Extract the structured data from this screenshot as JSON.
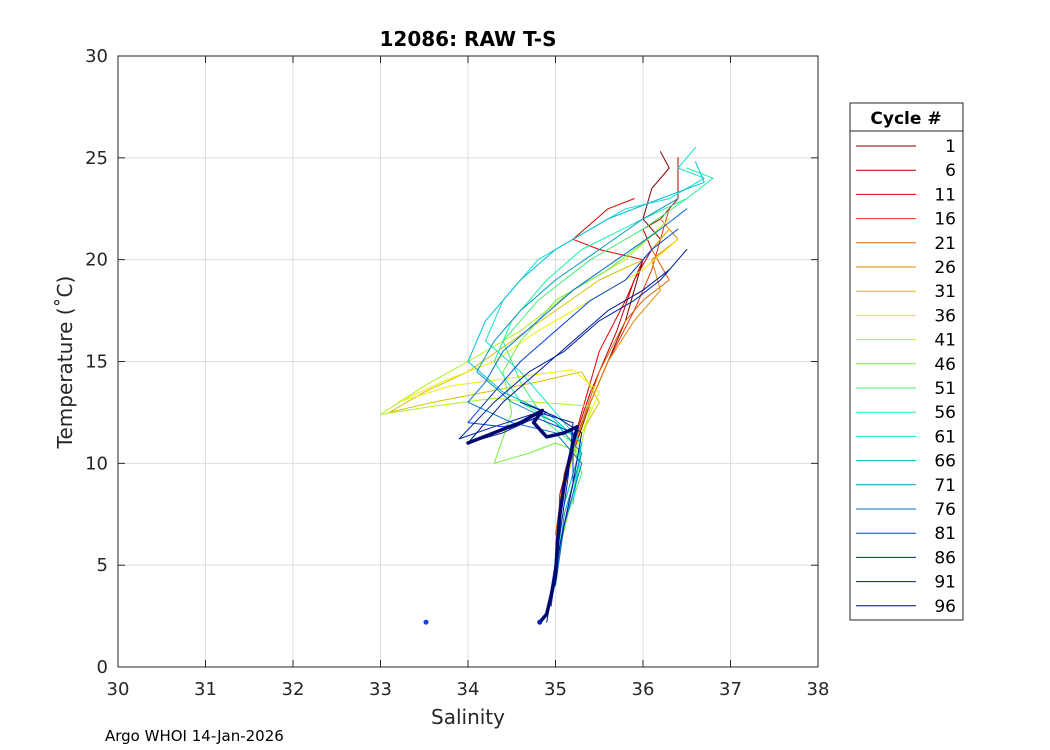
{
  "chart_data": {
    "type": "line",
    "title": "12086: RAW T-S",
    "xlabel": "Salinity",
    "ylabel": "Temperature (˚C)",
    "xlim": [
      30,
      38
    ],
    "ylim": [
      0,
      30
    ],
    "xticks": [
      "30",
      "31",
      "32",
      "33",
      "34",
      "35",
      "36",
      "37",
      "38"
    ],
    "yticks": [
      "0",
      "5",
      "10",
      "15",
      "20",
      "25",
      "30"
    ],
    "grid": true,
    "legend": {
      "title": "Cycle #",
      "placement": "outside-right",
      "entries": [
        {
          "label": "1",
          "color": "#800000"
        },
        {
          "label": "6",
          "color": "#b00000"
        },
        {
          "label": "11",
          "color": "#e00000"
        },
        {
          "label": "16",
          "color": "#e83010"
        },
        {
          "label": "21",
          "color": "#e06000"
        },
        {
          "label": "26",
          "color": "#e08800"
        },
        {
          "label": "31",
          "color": "#d8c000"
        },
        {
          "label": "36",
          "color": "#f0f000"
        },
        {
          "label": "41",
          "color": "#b0f020"
        },
        {
          "label": "46",
          "color": "#70f040"
        },
        {
          "label": "51",
          "color": "#40f070"
        },
        {
          "label": "56",
          "color": "#20f0a8"
        },
        {
          "label": "61",
          "color": "#10e0d0"
        },
        {
          "label": "66",
          "color": "#00c0d8"
        },
        {
          "label": "71",
          "color": "#0098c0"
        },
        {
          "label": "76",
          "color": "#0070d0"
        },
        {
          "label": "81",
          "color": "#0040e0"
        },
        {
          "label": "86",
          "color": "#0020b0"
        },
        {
          "label": "91",
          "color": "#001890"
        },
        {
          "label": "96",
          "color": "#000870"
        }
      ]
    },
    "series": [
      {
        "color": "#800000",
        "points": [
          [
            36.2,
            25.3
          ],
          [
            36.3,
            24.5
          ],
          [
            36.1,
            23.5
          ],
          [
            36.0,
            22.0
          ],
          [
            36.2,
            21.0
          ],
          [
            36.0,
            20.0
          ],
          [
            35.9,
            18.5
          ],
          [
            35.8,
            17.0
          ],
          [
            35.6,
            15.0
          ],
          [
            35.4,
            13.0
          ],
          [
            35.2,
            10.5
          ],
          [
            35.05,
            8.0
          ],
          [
            35.0,
            5.0
          ],
          [
            34.95,
            3.0
          ]
        ]
      },
      {
        "color": "#b00000",
        "points": [
          [
            36.4,
            25.0
          ],
          [
            36.4,
            23.0
          ],
          [
            36.2,
            22.0
          ],
          [
            36.0,
            21.5
          ],
          [
            36.1,
            20.5
          ],
          [
            35.9,
            19.0
          ],
          [
            35.7,
            16.5
          ],
          [
            35.4,
            13.5
          ],
          [
            35.2,
            11.0
          ],
          [
            35.05,
            8.5
          ],
          [
            35.0,
            4.5
          ]
        ]
      },
      {
        "color": "#e00000",
        "points": [
          [
            35.9,
            23.0
          ],
          [
            35.6,
            22.5
          ],
          [
            35.2,
            21.0
          ],
          [
            35.5,
            20.5
          ],
          [
            36.0,
            20.0
          ],
          [
            35.8,
            18.0
          ],
          [
            35.5,
            15.5
          ],
          [
            35.3,
            12.5
          ],
          [
            35.1,
            9.5
          ],
          [
            35.0,
            6.0
          ]
        ]
      },
      {
        "color": "#e83010",
        "points": [
          [
            36.3,
            22.5
          ],
          [
            36.2,
            21.0
          ],
          [
            36.1,
            19.5
          ],
          [
            35.9,
            17.5
          ],
          [
            35.6,
            15.0
          ],
          [
            35.3,
            12.0
          ],
          [
            35.1,
            9.0
          ],
          [
            35.0,
            5.5
          ]
        ]
      },
      {
        "color": "#e06000",
        "points": [
          [
            36.3,
            21.5
          ],
          [
            36.1,
            20.5
          ],
          [
            36.3,
            19.0
          ],
          [
            36.0,
            18.0
          ],
          [
            35.8,
            17.0
          ],
          [
            35.5,
            14.5
          ],
          [
            35.3,
            12.0
          ],
          [
            35.1,
            9.5
          ],
          [
            35.0,
            6.5
          ]
        ]
      },
      {
        "color": "#e08800",
        "points": [
          [
            36.2,
            22.0
          ],
          [
            36.4,
            21.0
          ],
          [
            36.1,
            20.0
          ],
          [
            36.2,
            18.5
          ],
          [
            35.9,
            17.0
          ],
          [
            35.6,
            15.0
          ],
          [
            35.35,
            12.5
          ],
          [
            35.15,
            10.0
          ],
          [
            35.02,
            6.5
          ]
        ]
      },
      {
        "color": "#d8c000",
        "points": [
          [
            36.3,
            21.5
          ],
          [
            36.0,
            20.0
          ],
          [
            35.5,
            19.0
          ],
          [
            35.0,
            17.5
          ],
          [
            34.5,
            16.0
          ],
          [
            34.0,
            14.5
          ],
          [
            33.5,
            13.5
          ],
          [
            33.1,
            12.5
          ],
          [
            33.6,
            13.0
          ],
          [
            34.2,
            13.5
          ],
          [
            34.8,
            14.0
          ],
          [
            35.3,
            14.5
          ],
          [
            35.5,
            13.0
          ],
          [
            35.3,
            11.5
          ],
          [
            35.1,
            9.0
          ],
          [
            35.0,
            6.0
          ]
        ]
      },
      {
        "color": "#f0f000",
        "points": [
          [
            36.4,
            21.0
          ],
          [
            36.0,
            19.5
          ],
          [
            35.4,
            18.0
          ],
          [
            34.8,
            16.5
          ],
          [
            34.3,
            15.0
          ],
          [
            33.7,
            14.0
          ],
          [
            33.2,
            13.0
          ],
          [
            33.8,
            13.8
          ],
          [
            34.5,
            14.2
          ],
          [
            35.2,
            14.6
          ],
          [
            35.5,
            13.5
          ],
          [
            35.3,
            11.5
          ],
          [
            35.1,
            9.0
          ]
        ]
      },
      {
        "color": "#b0f020",
        "points": [
          [
            36.3,
            22.0
          ],
          [
            35.8,
            20.0
          ],
          [
            35.2,
            18.5
          ],
          [
            34.6,
            16.5
          ],
          [
            34.0,
            15.0
          ],
          [
            33.5,
            13.8
          ],
          [
            33.0,
            12.4
          ],
          [
            33.6,
            12.8
          ],
          [
            34.3,
            13.2
          ],
          [
            34.8,
            13.0
          ],
          [
            35.4,
            12.8
          ],
          [
            35.3,
            11.0
          ],
          [
            35.1,
            8.0
          ],
          [
            35.0,
            5.0
          ]
        ]
      },
      {
        "color": "#70f040",
        "points": [
          [
            36.2,
            21.5
          ],
          [
            35.6,
            19.5
          ],
          [
            35.0,
            18.0
          ],
          [
            34.6,
            16.0
          ],
          [
            34.4,
            14.5
          ],
          [
            34.5,
            12.5
          ],
          [
            34.3,
            10.0
          ],
          [
            34.7,
            10.5
          ],
          [
            35.0,
            11.0
          ],
          [
            35.3,
            10.5
          ],
          [
            35.2,
            8.5
          ],
          [
            35.0,
            5.0
          ]
        ]
      },
      {
        "color": "#40f070",
        "points": [
          [
            36.5,
            23.0
          ],
          [
            36.0,
            21.5
          ],
          [
            35.4,
            20.0
          ],
          [
            34.8,
            18.0
          ],
          [
            34.4,
            16.0
          ],
          [
            34.6,
            14.0
          ],
          [
            34.9,
            12.0
          ],
          [
            35.2,
            11.0
          ],
          [
            35.3,
            9.5
          ],
          [
            35.1,
            7.0
          ],
          [
            35.0,
            4.5
          ]
        ]
      },
      {
        "color": "#20f0a8",
        "points": [
          [
            36.5,
            24.5
          ],
          [
            36.8,
            24.0
          ],
          [
            36.5,
            23.0
          ],
          [
            36.0,
            22.0
          ],
          [
            35.3,
            20.5
          ],
          [
            34.9,
            19.0
          ],
          [
            34.5,
            17.0
          ],
          [
            34.3,
            15.0
          ],
          [
            34.6,
            13.0
          ],
          [
            35.0,
            12.0
          ],
          [
            35.3,
            11.0
          ],
          [
            35.2,
            8.5
          ],
          [
            35.0,
            5.5
          ]
        ]
      },
      {
        "color": "#10e0d0",
        "points": [
          [
            36.6,
            25.5
          ],
          [
            36.4,
            24.5
          ],
          [
            36.7,
            24.0
          ],
          [
            36.3,
            23.0
          ],
          [
            35.8,
            22.5
          ],
          [
            35.2,
            21.0
          ],
          [
            34.8,
            20.0
          ],
          [
            34.4,
            18.0
          ],
          [
            34.2,
            16.0
          ],
          [
            34.6,
            14.5
          ],
          [
            35.0,
            12.5
          ],
          [
            35.3,
            11.0
          ],
          [
            35.2,
            8.0
          ]
        ]
      },
      {
        "color": "#00c0d8",
        "points": [
          [
            36.6,
            24.8
          ],
          [
            36.7,
            23.8
          ],
          [
            36.2,
            23.0
          ],
          [
            35.6,
            22.0
          ],
          [
            35.0,
            20.5
          ],
          [
            34.6,
            19.0
          ],
          [
            34.2,
            17.0
          ],
          [
            34.0,
            15.0
          ],
          [
            34.4,
            13.5
          ],
          [
            34.9,
            12.5
          ],
          [
            35.3,
            11.0
          ],
          [
            35.1,
            8.0
          ]
        ]
      },
      {
        "color": "#0098c0",
        "points": [
          [
            36.4,
            23.0
          ],
          [
            36.0,
            22.0
          ],
          [
            35.5,
            20.5
          ],
          [
            35.0,
            19.0
          ],
          [
            34.6,
            17.5
          ],
          [
            34.3,
            16.0
          ],
          [
            34.1,
            14.5
          ],
          [
            34.5,
            13.0
          ],
          [
            35.0,
            12.0
          ],
          [
            35.3,
            10.5
          ],
          [
            35.1,
            7.5
          ],
          [
            35.0,
            4.0
          ]
        ]
      },
      {
        "color": "#0070d0",
        "points": [
          [
            36.5,
            22.5
          ],
          [
            36.2,
            21.5
          ],
          [
            35.7,
            20.0
          ],
          [
            35.2,
            18.5
          ],
          [
            34.8,
            17.0
          ],
          [
            34.4,
            15.5
          ],
          [
            34.2,
            14.0
          ],
          [
            34.0,
            13.0
          ],
          [
            34.5,
            12.0
          ],
          [
            35.0,
            11.5
          ],
          [
            35.3,
            10.0
          ],
          [
            35.1,
            7.0
          ],
          [
            35.0,
            4.0
          ]
        ]
      },
      {
        "color": "#0040e0",
        "points": [
          [
            36.4,
            21.5
          ],
          [
            36.1,
            20.5
          ],
          [
            35.8,
            19.0
          ],
          [
            35.4,
            18.0
          ],
          [
            35.0,
            16.5
          ],
          [
            34.6,
            15.0
          ],
          [
            34.3,
            13.5
          ],
          [
            34.0,
            12.0
          ],
          [
            34.4,
            11.8
          ],
          [
            34.8,
            12.2
          ],
          [
            35.2,
            11.5
          ],
          [
            35.2,
            9.0
          ],
          [
            35.05,
            6.0
          ],
          [
            34.95,
            3.0
          ]
        ]
      },
      {
        "color": "#0020b0",
        "points": [
          [
            36.5,
            20.5
          ],
          [
            36.2,
            19.0
          ],
          [
            35.9,
            18.0
          ],
          [
            35.5,
            17.0
          ],
          [
            35.1,
            15.5
          ],
          [
            34.7,
            14.5
          ],
          [
            34.3,
            13.0
          ],
          [
            33.9,
            11.2
          ],
          [
            34.3,
            11.8
          ],
          [
            34.8,
            12.5
          ],
          [
            35.2,
            12.0
          ],
          [
            35.15,
            9.5
          ],
          [
            35.05,
            6.5
          ],
          [
            34.9,
            2.5
          ]
        ]
      },
      {
        "color": "#001890",
        "points": [
          [
            36.3,
            19.5
          ],
          [
            36.0,
            18.5
          ],
          [
            35.6,
            17.5
          ],
          [
            35.2,
            16.0
          ],
          [
            34.8,
            14.5
          ],
          [
            34.4,
            13.0
          ],
          [
            34.0,
            11.0
          ],
          [
            34.4,
            11.5
          ],
          [
            34.9,
            12.5
          ],
          [
            34.6,
            13.0
          ],
          [
            35.0,
            12.3
          ],
          [
            35.3,
            11.5
          ],
          [
            35.2,
            9.0
          ],
          [
            35.05,
            6.0
          ],
          [
            34.9,
            2.2
          ]
        ]
      },
      {
        "color": "#000870",
        "width": 3.5,
        "points": [
          [
            34.0,
            11.0
          ],
          [
            34.3,
            11.5
          ],
          [
            34.6,
            12.0
          ],
          [
            34.85,
            12.6
          ],
          [
            34.75,
            12.0
          ],
          [
            34.9,
            11.3
          ],
          [
            35.1,
            11.5
          ],
          [
            35.25,
            11.8
          ],
          [
            35.2,
            11.0
          ],
          [
            35.15,
            10.0
          ],
          [
            35.1,
            9.0
          ],
          [
            35.05,
            7.5
          ],
          [
            35.02,
            6.0
          ],
          [
            35.0,
            4.5
          ],
          [
            34.95,
            3.5
          ],
          [
            34.9,
            2.6
          ],
          [
            34.82,
            2.2
          ]
        ]
      }
    ],
    "markers": [
      {
        "x": 33.52,
        "y": 2.2,
        "color": "#1040e0"
      },
      {
        "x": 34.82,
        "y": 2.2,
        "color": "#0020b0"
      }
    ]
  },
  "footer": "Argo WHOI 14-Jan-2026"
}
